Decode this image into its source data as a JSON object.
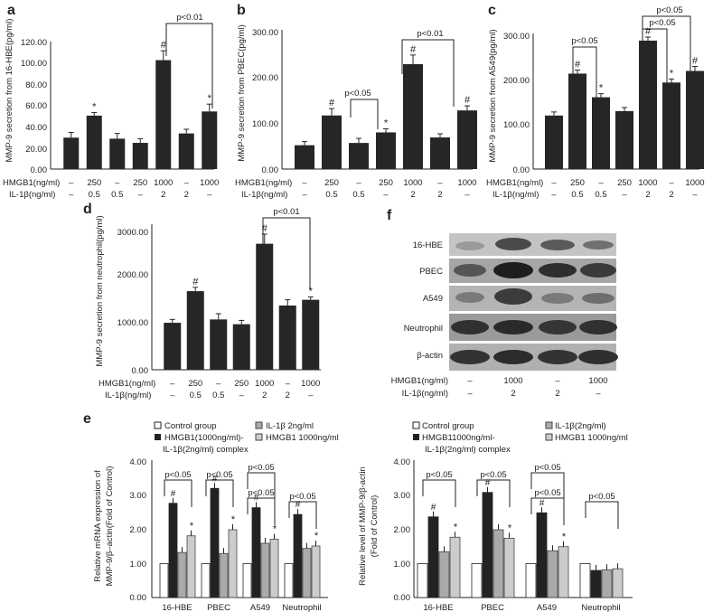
{
  "panels": {
    "a": {
      "letter": "a",
      "ylabel": "MMP-9 secretion from 16-HBE(pg/ml)",
      "ticks": [
        "0.00",
        "20.00",
        "40.00",
        "60.00",
        "80.00",
        "100.00",
        "120.00"
      ],
      "pval": "p<0.01"
    },
    "b": {
      "letter": "b",
      "ylabel": "MMP-9 secretion from PBEC(pg/ml)",
      "ticks": [
        "0.00",
        "100.00",
        "200.00",
        "300.00"
      ],
      "pval1": "p<0.05",
      "pval2": "p<0.01"
    },
    "c": {
      "letter": "c",
      "ylabel": "MMP-9 secretion from A549(pg/ml)",
      "ticks": [
        "0.00",
        "100.00",
        "200.00",
        "300.00"
      ],
      "pval1": "p<0.05",
      "pval2": "p<0.05",
      "pval3": "p<0.05"
    },
    "d": {
      "letter": "d",
      "ylabel": "MMP-9 secretion from neutrophil(pg/ml)",
      "ticks": [
        "0.00",
        "1000.00",
        "2000.00",
        "3000.00"
      ],
      "pval": "p<0.01"
    },
    "e": {
      "letter": "e"
    },
    "f": {
      "letter": "f"
    }
  },
  "treat": {
    "hmgb_label": "HMGB1(ng/ml)",
    "il_label": "IL-1β(ng/ml)",
    "hmgb": [
      "–",
      "250",
      "–",
      "250",
      "1000",
      "–",
      "1000"
    ],
    "il": [
      "–",
      "0.5",
      "0.5",
      "–",
      "2",
      "2",
      "–"
    ]
  },
  "blot": {
    "rows": [
      "16-HBE",
      "PBEC",
      "A549",
      "Neutrophil",
      "β-actin"
    ],
    "hmgb_label": "HMGB1(ng/ml)",
    "il_label": "IL-1β(ng/ml)",
    "hmgb": [
      "–",
      "1000",
      "–",
      "1000"
    ],
    "il": [
      "–",
      "2",
      "2",
      "–"
    ]
  },
  "legend_e1": {
    "control": "Control group",
    "complex1": "HMGB1(1000ng/ml)-",
    "complex2": "IL-1β(2ng/ml) complex",
    "il": "IL-1β 2ng/ml",
    "hmgb": "HMGB1 1000ng/ml",
    "ylabel1": "Relative mRNA expression of",
    "ylabel2": "MMP-9/β–actin(Fold of Control)",
    "ticks": [
      "0.00",
      "1.00",
      "2.00",
      "3.00",
      "4.00"
    ]
  },
  "legend_e2": {
    "control": "Control group",
    "complex1": "HMGB11000ng/ml-",
    "complex2": "IL-1β(2ng/ml) complex",
    "il": "IL-1β(2ng/ml)",
    "hmgb": "HMGB1 1000ng/ml",
    "ylabel1": "Relative level of MMP-9/β-actin",
    "ylabel2": "(Fold of Control)",
    "ticks": [
      "0.00",
      "1.00",
      "2.00",
      "3.00",
      "4.00"
    ]
  },
  "sig": {
    "hash": "#",
    "star": "*"
  },
  "chart_data": [
    {
      "panel": "a",
      "type": "bar",
      "title": "",
      "ylabel": "MMP-9 secretion from 16-HBE(pg/ml)",
      "ylim": [
        0,
        120
      ],
      "categories": [
        "1",
        "2",
        "3",
        "4",
        "5",
        "6",
        "7"
      ],
      "values": [
        30,
        51,
        29,
        25,
        104,
        34,
        55
      ],
      "errors": [
        5,
        3,
        5,
        4,
        9,
        4,
        7
      ],
      "markers": [
        "",
        "*",
        "",
        "",
        "#",
        "",
        "*"
      ]
    },
    {
      "panel": "b",
      "type": "bar",
      "title": "",
      "ylabel": "MMP-9 secretion from PBEC(pg/ml)",
      "ylim": [
        0,
        300
      ],
      "categories": [
        "1",
        "2",
        "3",
        "4",
        "5",
        "6",
        "7"
      ],
      "values": [
        52,
        117,
        57,
        80,
        229,
        69,
        128
      ],
      "errors": [
        8,
        15,
        10,
        8,
        20,
        8,
        10
      ],
      "markers": [
        "",
        "#",
        "",
        "*",
        "#",
        "",
        "#"
      ]
    },
    {
      "panel": "c",
      "type": "bar",
      "title": "",
      "ylabel": "MMP-9 secretion from A549(pg/ml)",
      "ylim": [
        0,
        300
      ],
      "categories": [
        "1",
        "2",
        "3",
        "4",
        "5",
        "6",
        "7"
      ],
      "values": [
        120,
        214,
        161,
        130,
        288,
        194,
        220
      ],
      "errors": [
        8,
        8,
        8,
        8,
        8,
        8,
        10
      ],
      "markers": [
        "",
        "#",
        "*",
        "",
        "#",
        "*",
        "#"
      ]
    },
    {
      "panel": "d",
      "type": "bar",
      "title": "",
      "ylabel": "MMP-9 secretion from neutrophil(pg/ml)",
      "ylim": [
        0,
        3000
      ],
      "categories": [
        "1",
        "2",
        "3",
        "4",
        "5",
        "6",
        "7"
      ],
      "values": [
        980,
        1640,
        1050,
        950,
        2630,
        1340,
        1460
      ],
      "errors": [
        70,
        80,
        120,
        80,
        200,
        120,
        60
      ],
      "markers": [
        "",
        "#",
        "",
        "",
        "#",
        "",
        "*"
      ]
    },
    {
      "panel": "e-left",
      "type": "bar",
      "ylabel": "Relative mRNA expression of MMP-9/β–actin(Fold of Control)",
      "ylim": [
        0,
        4
      ],
      "categories": [
        "16-HBE",
        "PBEC",
        "A549",
        "Neutrophil"
      ],
      "series": [
        {
          "name": "Control group",
          "values": [
            1.0,
            1.0,
            1.0,
            1.0
          ]
        },
        {
          "name": "HMGB1(1000ng/ml)-IL-1β(2ng/ml) complex",
          "values": [
            2.78,
            3.22,
            2.65,
            2.45
          ]
        },
        {
          "name": "IL-1β 2ng/ml",
          "values": [
            1.33,
            1.3,
            1.6,
            1.45
          ]
        },
        {
          "name": "HMGB1 1000ng/ml",
          "values": [
            1.82,
            2.0,
            1.72,
            1.52
          ]
        }
      ],
      "annotations": [
        "p<0.05",
        "p<0.05",
        "p<0.05",
        "p<0.05",
        "p<0.05"
      ]
    },
    {
      "panel": "e-right",
      "type": "bar",
      "ylabel": "Relative level of MMP-9/β-actin (Fold of Control)",
      "ylim": [
        0,
        4
      ],
      "categories": [
        "16-HBE",
        "PBEC",
        "A549",
        "Neutrophil"
      ],
      "series": [
        {
          "name": "Control group",
          "values": [
            1.0,
            1.0,
            1.0,
            1.0
          ]
        },
        {
          "name": "HMGB11000ng/ml-IL-1β(2ng/ml) complex",
          "values": [
            2.38,
            3.1,
            2.5,
            0.8
          ]
        },
        {
          "name": "IL-1β(2ng/ml)",
          "values": [
            1.35,
            2.0,
            1.38,
            0.82
          ]
        },
        {
          "name": "HMGB1 1000ng/ml",
          "values": [
            1.78,
            1.75,
            1.5,
            0.85
          ]
        }
      ],
      "annotations": [
        "p<0.05",
        "p<0.05",
        "p<0.05",
        "p<0.05",
        "p<0.05"
      ]
    }
  ]
}
